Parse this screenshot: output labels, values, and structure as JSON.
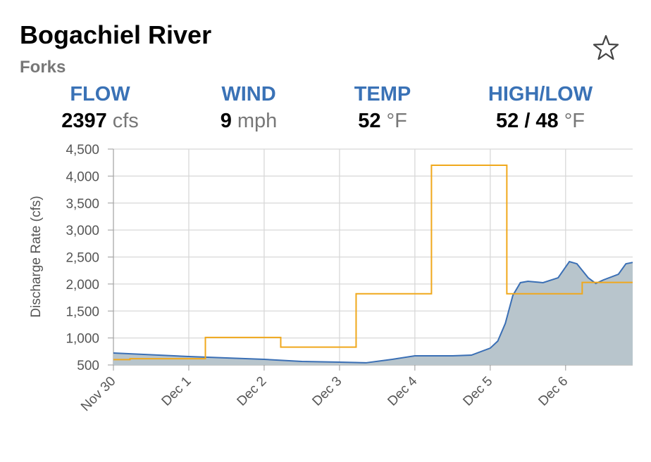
{
  "header": {
    "title": "Bogachiel River",
    "subtitle": "Forks",
    "stats": [
      {
        "label": "FLOW",
        "value": 2397,
        "unit": "cfs"
      },
      {
        "label": "WIND",
        "value": 9,
        "unit": "mph"
      },
      {
        "label": "TEMP",
        "value": 52,
        "unit": "°F"
      },
      {
        "label": "HIGH/LOW",
        "value": "52 / 48",
        "unit": "°F"
      }
    ]
  },
  "chart_data": {
    "type": "line",
    "y_label": "Discharge Rate (cfs)",
    "xlim": [
      0,
      6.89
    ],
    "ylim": [
      500,
      4500
    ],
    "xticks": [
      {
        "value": 0,
        "label": "Nov 30"
      },
      {
        "value": 1,
        "label": "Dec 1"
      },
      {
        "value": 2,
        "label": "Dec 2"
      },
      {
        "value": 3,
        "label": "Dec 3"
      },
      {
        "value": 4,
        "label": "Dec 4"
      },
      {
        "value": 5,
        "label": "Dec 5"
      },
      {
        "value": 6,
        "label": "Dec 6"
      }
    ],
    "yticks": [
      500,
      {
        "value": 1000,
        "label": "1,000"
      },
      {
        "value": 1500,
        "label": "1,500"
      },
      {
        "value": 2000,
        "label": "2,000"
      },
      {
        "value": 2500,
        "label": "2,500"
      },
      {
        "value": 3000,
        "label": "3,000"
      },
      {
        "value": 3500,
        "label": "3,500"
      },
      {
        "value": 4000,
        "label": "4,000"
      },
      {
        "value": 4500,
        "label": "4,500"
      }
    ],
    "grid": true,
    "series": [
      {
        "color": "#3a6fb5",
        "fill": "#b8c5cc",
        "area": true,
        "step": false,
        "x": [
          0,
          1,
          1.5,
          2,
          2.5,
          3,
          3.35,
          3.7,
          4,
          4.5,
          4.75,
          5,
          5.1,
          5.2,
          5.3,
          5.4,
          5.5,
          5.7,
          5.9,
          6.05,
          6.15,
          6.3,
          6.4,
          6.5,
          6.7,
          6.8,
          6.89
        ],
        "values": [
          721,
          656,
          630,
          604,
          565,
          552,
          540,
          604,
          670,
          670,
          682,
          812,
          943,
          1270,
          1790,
          2025,
          2050,
          2025,
          2115,
          2415,
          2375,
          2115,
          2010,
          2075,
          2180,
          2375,
          2400
        ]
      },
      {
        "color": "#f0a81c",
        "area": false,
        "step": true,
        "x": [
          0,
          0.22,
          1.22,
          2.22,
          3.22,
          4.22,
          5.22,
          6.22,
          6.89
        ],
        "values": [
          600,
          615,
          1010,
          830,
          1820,
          4200,
          1820,
          2030,
          2030
        ]
      }
    ]
  }
}
